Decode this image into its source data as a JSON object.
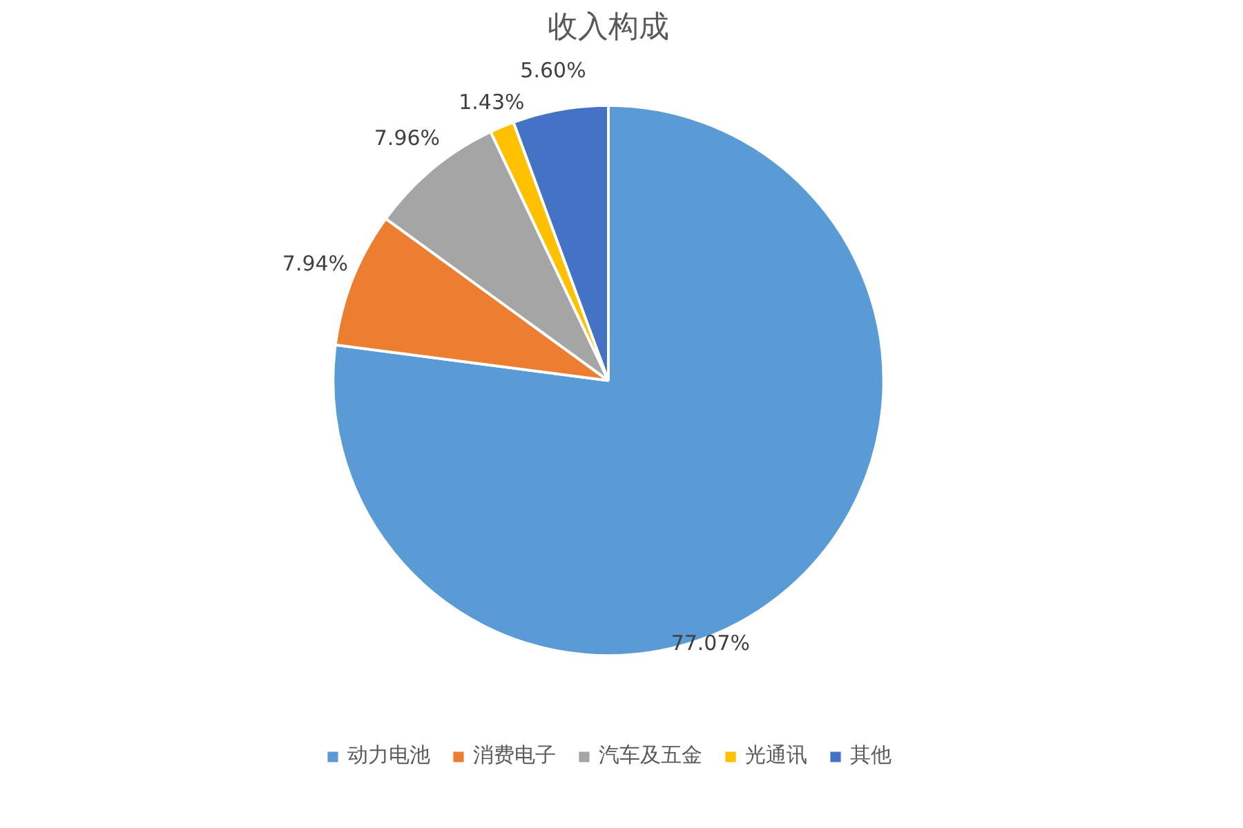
{
  "chart_data": {
    "type": "pie",
    "title": "收入构成",
    "categories": [
      "动力电池",
      "消费电子",
      "汽车及五金",
      "光通讯",
      "其他"
    ],
    "values": [
      77.07,
      7.94,
      7.96,
      1.43,
      5.6
    ],
    "value_labels": [
      "77.07%",
      "7.94%",
      "7.96%",
      "1.43%",
      "5.60%"
    ],
    "colors": [
      "#5b9bd5",
      "#ed7d31",
      "#a5a5a5",
      "#ffc000",
      "#4472c4"
    ],
    "legend": "bottom"
  }
}
